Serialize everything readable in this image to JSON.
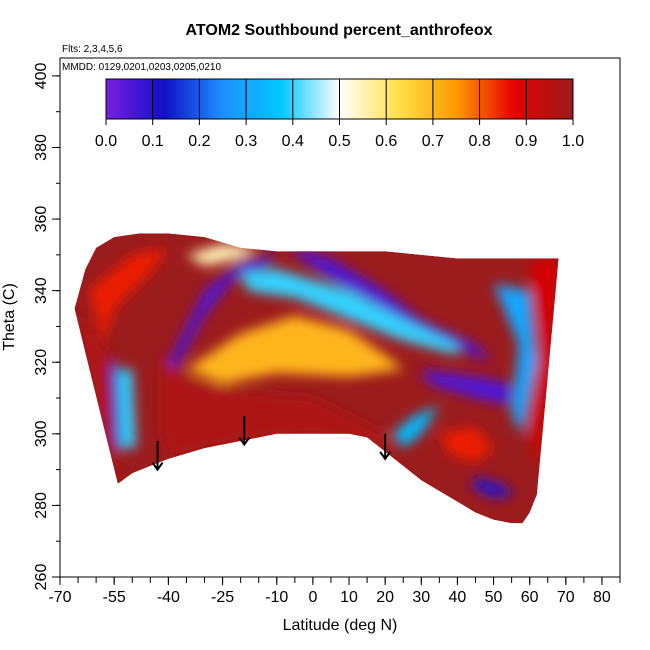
{
  "chart_data": {
    "type": "heatmap",
    "title": "ATOM2 Southbound percent_anthrofeox",
    "flights_note": "Flts: 2,3,4,5,6",
    "dates_note": "MMDD: 0129,0201,0203,0205,0210",
    "xlabel": "Latitude (deg N)",
    "ylabel": "Theta (C)",
    "xlim": [
      -70,
      85
    ],
    "ylim": [
      260,
      405
    ],
    "x_ticks": [
      -70,
      -55,
      -40,
      -25,
      -10,
      0,
      10,
      20,
      30,
      40,
      50,
      60,
      70,
      80
    ],
    "y_ticks": [
      260,
      280,
      300,
      320,
      340,
      360,
      380,
      400
    ],
    "colorbar": {
      "min": 0.0,
      "max": 1.0,
      "tick_labels": [
        "0.0",
        "0.1",
        "0.2",
        "0.3",
        "0.4",
        "0.5",
        "0.6",
        "0.7",
        "0.8",
        "0.9",
        "1.0"
      ],
      "colors": [
        "#7a1fe0",
        "#1010c8",
        "#1e90ff",
        "#00c8ff",
        "#ffffff",
        "#ffe14a",
        "#ff9a00",
        "#e60000",
        "#9b1c1c"
      ]
    },
    "arrows_latitudes": [
      -43,
      -19,
      20
    ],
    "field": {
      "envelope_top": [
        [
          -66,
          335
        ],
        [
          -63,
          346
        ],
        [
          -60,
          352
        ],
        [
          -55,
          355
        ],
        [
          -48,
          356
        ],
        [
          -40,
          356
        ],
        [
          -30,
          355
        ],
        [
          -20,
          352
        ],
        [
          -10,
          351
        ],
        [
          0,
          351
        ],
        [
          10,
          351
        ],
        [
          20,
          351
        ],
        [
          30,
          350
        ],
        [
          40,
          349
        ],
        [
          50,
          349
        ],
        [
          60,
          349
        ],
        [
          68,
          349
        ]
      ],
      "envelope_bottom": [
        [
          -54,
          286
        ],
        [
          -50,
          289
        ],
        [
          -45,
          291
        ],
        [
          -40,
          293
        ],
        [
          -30,
          296
        ],
        [
          -20,
          298
        ],
        [
          -10,
          300
        ],
        [
          0,
          300
        ],
        [
          10,
          300
        ],
        [
          15,
          299
        ],
        [
          20,
          295
        ],
        [
          25,
          291
        ],
        [
          30,
          287
        ],
        [
          35,
          284
        ],
        [
          40,
          281
        ],
        [
          45,
          278
        ],
        [
          50,
          276
        ],
        [
          55,
          275
        ],
        [
          58,
          275
        ],
        [
          60,
          278
        ],
        [
          62,
          283
        ]
      ],
      "regions": [
        {
          "value": 0.97,
          "poly": [
            [
              -66,
              335
            ],
            [
              -56,
              322
            ],
            [
              -54,
              286
            ],
            [
              -60,
              305
            ]
          ]
        },
        {
          "value": 0.97,
          "poly": [
            [
              -42,
              322
            ],
            [
              -34,
              315
            ],
            [
              -20,
              312
            ],
            [
              0,
              310
            ],
            [
              10,
              305
            ],
            [
              20,
              300
            ],
            [
              20,
              295
            ],
            [
              0,
              300
            ],
            [
              -20,
              298
            ],
            [
              -40,
              293
            ],
            [
              -42,
              300
            ]
          ]
        },
        {
          "value": 0.05,
          "poly": [
            [
              -5,
              352
            ],
            [
              5,
              349
            ],
            [
              20,
              340
            ],
            [
              30,
              332
            ],
            [
              45,
              325
            ],
            [
              50,
              320
            ],
            [
              44,
              322
            ],
            [
              30,
              328
            ],
            [
              18,
              336
            ],
            [
              5,
              343
            ],
            [
              -5,
              350
            ]
          ]
        },
        {
          "value": 0.05,
          "poly": [
            [
              -40,
              320
            ],
            [
              -30,
              340
            ],
            [
              -20,
              348
            ],
            [
              -10,
              350
            ],
            [
              -12,
              347
            ],
            [
              -22,
              343
            ],
            [
              -30,
              333
            ],
            [
              -38,
              318
            ]
          ]
        },
        {
          "value": 0.05,
          "poly": [
            [
              30,
              318
            ],
            [
              45,
              316
            ],
            [
              55,
              314
            ],
            [
              55,
              308
            ],
            [
              45,
              310
            ],
            [
              32,
              314
            ]
          ]
        },
        {
          "value": 0.7,
          "poly": [
            [
              -35,
              318
            ],
            [
              -20,
              328
            ],
            [
              -5,
              333
            ],
            [
              10,
              329
            ],
            [
              20,
              322
            ],
            [
              25,
              318
            ],
            [
              10,
              316
            ],
            [
              -10,
              317
            ],
            [
              -25,
              314
            ]
          ]
        },
        {
          "value": 0.4,
          "poly": [
            [
              -20,
              345
            ],
            [
              -10,
              346
            ],
            [
              10,
              340
            ],
            [
              25,
              332
            ],
            [
              40,
              325
            ],
            [
              40,
              322
            ],
            [
              25,
              326
            ],
            [
              10,
              332
            ],
            [
              -5,
              338
            ],
            [
              -18,
              340
            ]
          ]
        },
        {
          "value": 0.4,
          "poly": [
            [
              -54,
              318
            ],
            [
              -50,
              318
            ],
            [
              -49,
              296
            ],
            [
              -53,
              296
            ]
          ]
        },
        {
          "value": 0.15,
          "poly": [
            [
              -56,
              320
            ],
            [
              -54,
              320
            ],
            [
              -53,
              296
            ],
            [
              -55,
              296
            ]
          ]
        },
        {
          "value": 0.85,
          "poly": [
            [
              -62,
              340
            ],
            [
              -50,
              350
            ],
            [
              -40,
              352
            ],
            [
              -45,
              345
            ],
            [
              -55,
              335
            ],
            [
              -58,
              325
            ]
          ]
        },
        {
          "value": 0.55,
          "poly": [
            [
              -35,
              350
            ],
            [
              -25,
              353
            ],
            [
              -15,
              352
            ],
            [
              -20,
              349
            ],
            [
              -30,
              347
            ]
          ]
        },
        {
          "value": 0.3,
          "poly": [
            [
              50,
              342
            ],
            [
              60,
              340
            ],
            [
              62,
              320
            ],
            [
              58,
              300
            ],
            [
              55,
              305
            ],
            [
              57,
              325
            ]
          ]
        },
        {
          "value": 0.9,
          "poly": [
            [
              60,
              348
            ],
            [
              68,
              349
            ],
            [
              66,
              320
            ],
            [
              62,
              290
            ],
            [
              60,
              300
            ],
            [
              63,
              325
            ]
          ]
        },
        {
          "value": 0.1,
          "poly": [
            [
              45,
              288
            ],
            [
              52,
              286
            ],
            [
              56,
              283
            ],
            [
              50,
              282
            ],
            [
              44,
              285
            ]
          ]
        },
        {
          "value": 0.35,
          "poly": [
            [
              22,
              300
            ],
            [
              28,
              305
            ],
            [
              35,
              308
            ],
            [
              30,
              300
            ],
            [
              25,
              296
            ]
          ]
        },
        {
          "value": 0.85,
          "poly": [
            [
              35,
              300
            ],
            [
              45,
              302
            ],
            [
              50,
              296
            ],
            [
              45,
              292
            ],
            [
              38,
              294
            ]
          ]
        }
      ]
    }
  }
}
